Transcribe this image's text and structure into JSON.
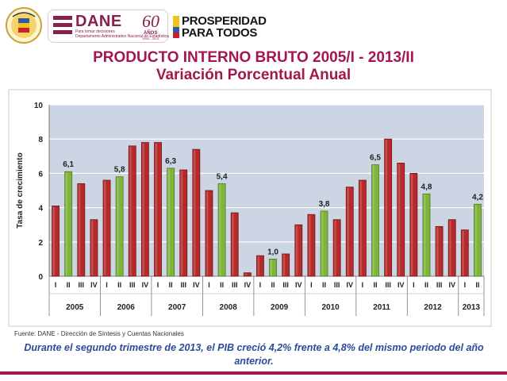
{
  "header": {
    "dane_name": "DANE",
    "dane_tagline": "Para tomar decisiones",
    "dane_full": "Departamento Administrativo Nacional de Estadística",
    "anniversary_number": "60",
    "anniversary_word": "AÑOS",
    "anniversary_years": "1953 - 2013",
    "prosperidad_line1": "PROSPERIDAD",
    "prosperidad_line2": "PARA TODOS"
  },
  "title": {
    "line1": "PRODUCTO INTERNO BRUTO 2005/I - 2013/II",
    "line2": "Variación Porcentual Anual"
  },
  "chart_data": {
    "type": "bar",
    "ylabel": "Tasa de crecimiento",
    "ylim": [
      0,
      10
    ],
    "yticks": [
      0,
      2,
      4,
      6,
      8,
      10
    ],
    "grid": true,
    "colors": {
      "default": "#b52a2a",
      "highlight": "#7fb33a",
      "plot_bg": "#ccd5e4"
    },
    "years": [
      {
        "year": "2005",
        "quarters": [
          "I",
          "II",
          "III",
          "IV"
        ],
        "values": [
          4.1,
          6.1,
          5.4,
          3.3
        ]
      },
      {
        "year": "2006",
        "quarters": [
          "I",
          "II",
          "III",
          "IV"
        ],
        "values": [
          5.6,
          5.8,
          7.6,
          7.8
        ]
      },
      {
        "year": "2007",
        "quarters": [
          "I",
          "II",
          "III",
          "IV"
        ],
        "values": [
          7.8,
          6.3,
          6.2,
          7.4
        ]
      },
      {
        "year": "2008",
        "quarters": [
          "I",
          "II",
          "III",
          "IV"
        ],
        "values": [
          5.0,
          5.4,
          3.7,
          0.2
        ]
      },
      {
        "year": "2009",
        "quarters": [
          "I",
          "II",
          "III",
          "IV"
        ],
        "values": [
          1.2,
          1.0,
          1.3,
          3.0
        ]
      },
      {
        "year": "2010",
        "quarters": [
          "I",
          "II",
          "III",
          "IV"
        ],
        "values": [
          3.6,
          3.8,
          3.3,
          5.2
        ]
      },
      {
        "year": "2011",
        "quarters": [
          "I",
          "II",
          "III",
          "IV"
        ],
        "values": [
          5.6,
          6.5,
          8.0,
          6.6
        ]
      },
      {
        "year": "2012",
        "quarters": [
          "I",
          "II",
          "III",
          "IV"
        ],
        "values": [
          6.0,
          4.8,
          2.9,
          3.3
        ]
      },
      {
        "year": "2013",
        "quarters": [
          "I",
          "II"
        ],
        "values": [
          2.7,
          4.2
        ]
      }
    ],
    "highlighted_quarter": "II",
    "data_labels": {
      "2005-II": "6,1",
      "2006-II": "5,8",
      "2007-II": "6,3",
      "2008-II": "5,4",
      "2009-II": "1,0",
      "2010-II": "3,8",
      "2011-II": "6,5",
      "2012-II": "4,8",
      "2013-II": "4,2"
    }
  },
  "source": "Fuente: DANE - Dirección de Síntesis y Cuentas Nacionales",
  "footnote": "Durante el segundo trimestre de 2013, el PIB creció 4,2% frente a 4,8% del mismo periodo del año anterior."
}
